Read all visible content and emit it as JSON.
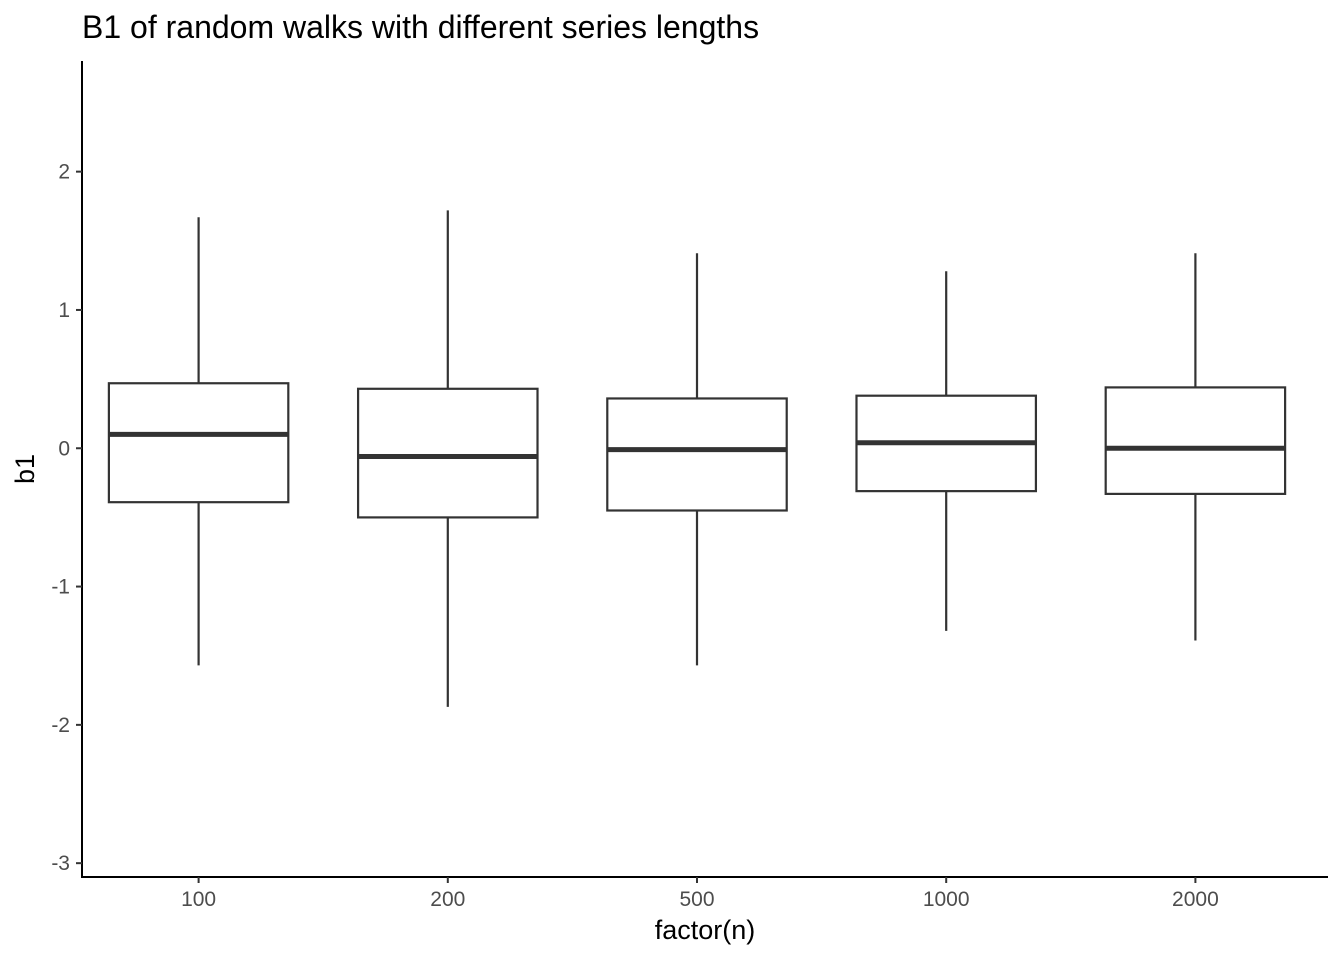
{
  "chart_data": {
    "type": "boxplot",
    "title": "B1 of random walks with different series lengths",
    "xlabel": "factor(n)",
    "ylabel": "b1",
    "categories": [
      "100",
      "200",
      "500",
      "1000",
      "2000"
    ],
    "ylim": [
      -3.1,
      2.8
    ],
    "yticks": [
      -3,
      -2,
      -1,
      0,
      1,
      2
    ],
    "ytick_labels": [
      "-3",
      "-2",
      "-1",
      "0",
      "1",
      "2"
    ],
    "grid": false,
    "boxes": [
      {
        "name": "100",
        "whisker_low": -1.57,
        "q1": -0.39,
        "median": 0.1,
        "q3": 0.47,
        "whisker_high": 1.67
      },
      {
        "name": "200",
        "whisker_low": -1.87,
        "q1": -0.5,
        "median": -0.06,
        "q3": 0.43,
        "whisker_high": 1.72
      },
      {
        "name": "500",
        "whisker_low": -1.57,
        "q1": -0.45,
        "median": -0.01,
        "q3": 0.36,
        "whisker_high": 1.41
      },
      {
        "name": "1000",
        "whisker_low": -1.32,
        "q1": -0.31,
        "median": 0.04,
        "q3": 0.38,
        "whisker_high": 1.28
      },
      {
        "name": "2000",
        "whisker_low": -1.39,
        "q1": -0.33,
        "median": 0.0,
        "q3": 0.44,
        "whisker_high": 1.41
      }
    ],
    "colors": {
      "box_stroke": "#333333",
      "box_fill": "#ffffff",
      "axis": "#000000",
      "tick_text": "#4d4d4d"
    }
  }
}
